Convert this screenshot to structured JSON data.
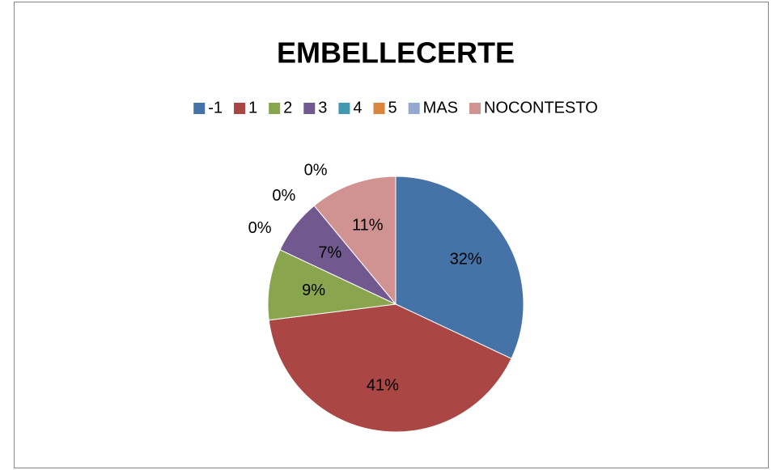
{
  "chart_data": {
    "type": "pie",
    "title": "EMBELLECERTE",
    "categories": [
      "-1",
      "1",
      "2",
      "3",
      "4",
      "5",
      "MAS",
      "NOCONTESTO"
    ],
    "values": [
      32,
      41,
      9,
      7,
      0,
      0,
      0,
      11
    ],
    "value_labels": [
      "32%",
      "41%",
      "9%",
      "7%",
      "0%",
      "0%",
      "0%",
      "11%"
    ],
    "colors": [
      "#4572a7",
      "#aa4643",
      "#89a54e",
      "#71588f",
      "#4198af",
      "#db843d",
      "#93a9cf",
      "#d19392"
    ],
    "legend": "top"
  }
}
